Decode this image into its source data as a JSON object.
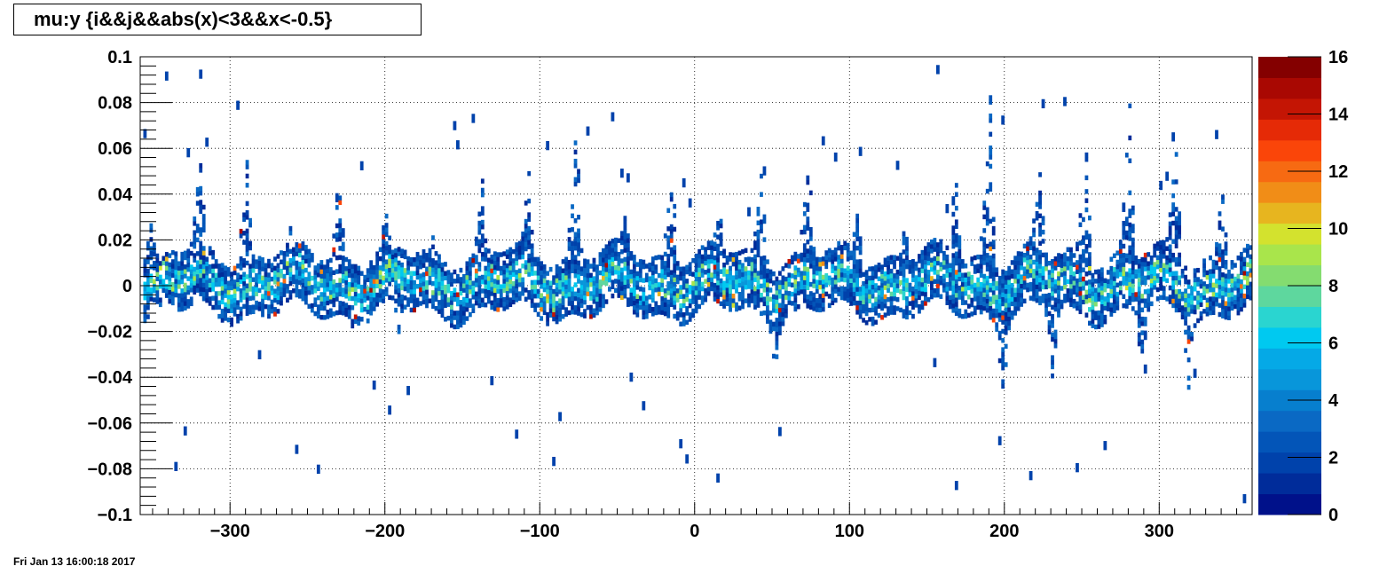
{
  "title": "mu:y {i&&j&&abs(x)<3&&x<-0.5}",
  "timestamp": "Fri Jan 13 16:00:18 2017",
  "chart_data": {
    "type": "heatmap",
    "title": "mu:y {i&&j&&abs(x)<3&&x<-0.5}",
    "xlabel": "",
    "ylabel": "",
    "xlim": [
      -358,
      360
    ],
    "ylim": [
      -0.1,
      0.1
    ],
    "zlim": [
      0,
      16
    ],
    "grid": true,
    "x_ticks": [
      {
        "value": -300,
        "label": "−300"
      },
      {
        "value": -200,
        "label": "−200"
      },
      {
        "value": -100,
        "label": "−100"
      },
      {
        "value": 0,
        "label": "0"
      },
      {
        "value": 100,
        "label": "100"
      },
      {
        "value": 200,
        "label": "200"
      },
      {
        "value": 300,
        "label": "300"
      }
    ],
    "y_ticks": [
      {
        "value": 0.1,
        "label": "0.1"
      },
      {
        "value": 0.08,
        "label": "0.08"
      },
      {
        "value": 0.06,
        "label": "0.06"
      },
      {
        "value": 0.04,
        "label": "0.04"
      },
      {
        "value": 0.02,
        "label": "0.02"
      },
      {
        "value": 0,
        "label": "0"
      },
      {
        "value": -0.02,
        "label": "−0.02"
      },
      {
        "value": -0.04,
        "label": "−0.04"
      },
      {
        "value": -0.06,
        "label": "−0.06"
      },
      {
        "value": -0.08,
        "label": "−0.08"
      },
      {
        "value": -0.1,
        "label": "−0.1"
      }
    ],
    "z_ticks": [
      {
        "value": 0,
        "label": "0"
      },
      {
        "value": 2,
        "label": "2"
      },
      {
        "value": 4,
        "label": "4"
      },
      {
        "value": 6,
        "label": "6"
      },
      {
        "value": 8,
        "label": "8"
      },
      {
        "value": 10,
        "label": "10"
      },
      {
        "value": 12,
        "label": "12"
      },
      {
        "value": 14,
        "label": "14"
      },
      {
        "value": 16,
        "label": "16"
      }
    ],
    "palette": [
      "#00118a",
      "#002c9a",
      "#0042ab",
      "#0355b8",
      "#0a69c4",
      "#077fce",
      "#0896da",
      "#05a9e6",
      "#00c9f0",
      "#2ad5d0",
      "#5ed79e",
      "#84dc70",
      "#a9e54b",
      "#d3e22e",
      "#e7b51f",
      "#f18d17",
      "#f76a12",
      "#fa4509",
      "#e52a06",
      "#c41504",
      "#a90802",
      "#840000"
    ],
    "ridges": [
      {
        "center": -352,
        "peak": 0.035,
        "dip": -0.005
      },
      {
        "center": -320,
        "peak": 0.06,
        "dip": -0.01
      },
      {
        "center": -290,
        "peak": 0.06,
        "dip": -0.005
      },
      {
        "center": -262,
        "peak": 0.02,
        "dip": -0.01
      },
      {
        "center": -230,
        "peak": 0.05,
        "dip": -0.015
      },
      {
        "center": -200,
        "peak": 0.03,
        "dip": -0.025
      },
      {
        "center": -170,
        "peak": 0.02,
        "dip": 0.0
      },
      {
        "center": -138,
        "peak": 0.05,
        "dip": -0.01
      },
      {
        "center": -108,
        "peak": 0.045,
        "dip": 0.0
      },
      {
        "center": -77,
        "peak": 0.08,
        "dip": -0.005
      },
      {
        "center": -45,
        "peak": 0.03,
        "dip": -0.01
      },
      {
        "center": -15,
        "peak": 0.065,
        "dip": -0.005
      },
      {
        "center": 15,
        "peak": 0.035,
        "dip": -0.005
      },
      {
        "center": 43,
        "peak": 0.06,
        "dip": -0.03
      },
      {
        "center": 73,
        "peak": 0.06,
        "dip": -0.01
      },
      {
        "center": 105,
        "peak": 0.04,
        "dip": -0.01
      },
      {
        "center": 135,
        "peak": 0.03,
        "dip": -0.01
      },
      {
        "center": 168,
        "peak": 0.045,
        "dip": 0.0
      },
      {
        "center": 190,
        "peak": 0.085,
        "dip": -0.045
      },
      {
        "center": 222,
        "peak": 0.06,
        "dip": -0.045
      },
      {
        "center": 252,
        "peak": 0.07,
        "dip": -0.01
      },
      {
        "center": 280,
        "peak": 0.08,
        "dip": -0.04
      },
      {
        "center": 310,
        "peak": 0.065,
        "dip": -0.04
      },
      {
        "center": 340,
        "peak": 0.05,
        "dip": -0.005
      }
    ]
  }
}
